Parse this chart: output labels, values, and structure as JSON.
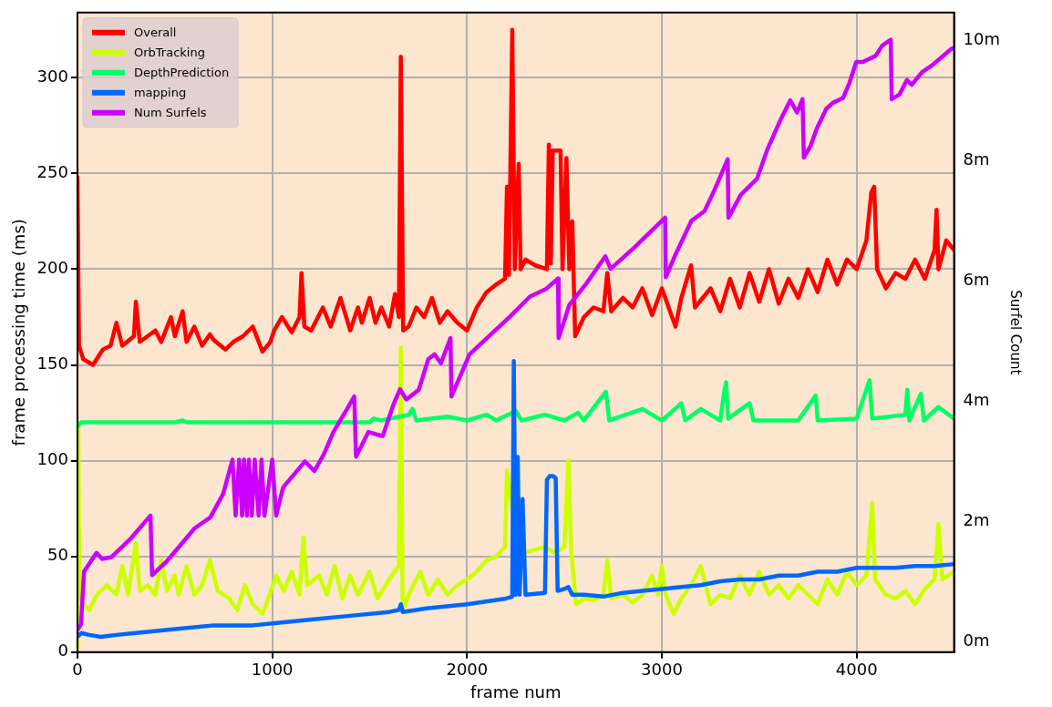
{
  "chart_data": {
    "type": "line",
    "xlabel": "frame num",
    "ylabel": "frame processing time (ms)",
    "y2label": "Surfel Count",
    "xlim": [
      0,
      4500
    ],
    "xticks": [
      0,
      1000,
      2000,
      3000,
      4000
    ],
    "ylim": [
      0,
      334
    ],
    "yticks": [
      0,
      50,
      100,
      150,
      200,
      250,
      300
    ],
    "y2lim": [
      -0.17,
      10.46
    ],
    "y2ticks": [
      {
        "value": 0,
        "label": "0m"
      },
      {
        "value": 2,
        "label": "2m"
      },
      {
        "value": 4,
        "label": "4m"
      },
      {
        "value": 6,
        "label": "6m"
      },
      {
        "value": 8,
        "label": "8m"
      },
      {
        "value": 10,
        "label": "10m"
      }
    ],
    "grid": true,
    "legend": "top left",
    "marker": "none",
    "line_style": "solid",
    "series": [
      {
        "name": "Overall",
        "color": "#ff0000",
        "x": [
          0,
          8,
          30,
          80,
          130,
          170,
          200,
          230,
          290,
          300,
          320,
          400,
          430,
          480,
          500,
          540,
          560,
          600,
          640,
          680,
          700,
          760,
          800,
          850,
          900,
          950,
          990,
          1010,
          1050,
          1100,
          1140,
          1150,
          1165,
          1200,
          1260,
          1300,
          1350,
          1400,
          1440,
          1460,
          1500,
          1530,
          1560,
          1600,
          1630,
          1650,
          1660,
          1672,
          1700,
          1740,
          1780,
          1820,
          1860,
          1900,
          1950,
          2000,
          2050,
          2100,
          2150,
          2195,
          2205,
          2215,
          2232,
          2245,
          2265,
          2275,
          2300,
          2350,
          2410,
          2420,
          2430,
          2440,
          2460,
          2480,
          2490,
          2510,
          2525,
          2540,
          2555,
          2600,
          2650,
          2700,
          2720,
          2740,
          2800,
          2850,
          2900,
          2950,
          3000,
          3070,
          3100,
          3150,
          3170,
          3250,
          3300,
          3350,
          3400,
          3450,
          3500,
          3550,
          3600,
          3650,
          3700,
          3750,
          3800,
          3850,
          3900,
          3950,
          4000,
          4050,
          4075,
          4090,
          4105,
          4150,
          4200,
          4250,
          4300,
          4350,
          4400,
          4410,
          4420,
          4460,
          4500
        ],
        "values": [
          248,
          160,
          153,
          150,
          158,
          160,
          172,
          160,
          165,
          183,
          162,
          168,
          162,
          175,
          165,
          178,
          162,
          170,
          160,
          166,
          163,
          158,
          162,
          165,
          170,
          157,
          162,
          168,
          175,
          167,
          175,
          198,
          170,
          168,
          180,
          170,
          185,
          168,
          180,
          172,
          185,
          172,
          180,
          170,
          187,
          175,
          311,
          168,
          170,
          180,
          175,
          185,
          172,
          178,
          172,
          168,
          180,
          188,
          192,
          195,
          243,
          197,
          325,
          200,
          255,
          200,
          205,
          202,
          200,
          265,
          203,
          262,
          262,
          262,
          200,
          258,
          200,
          225,
          165,
          175,
          180,
          178,
          198,
          178,
          185,
          180,
          190,
          176,
          190,
          170,
          185,
          202,
          180,
          190,
          178,
          195,
          180,
          198,
          183,
          200,
          182,
          195,
          185,
          200,
          188,
          205,
          192,
          205,
          200,
          215,
          240,
          243,
          200,
          190,
          198,
          195,
          205,
          195,
          210,
          231,
          200,
          215,
          210
        ]
      },
      {
        "name": "OrbTracking",
        "color": "#ccff00",
        "x": [
          0,
          4,
          10,
          30,
          60,
          100,
          150,
          200,
          230,
          260,
          300,
          320,
          360,
          400,
          430,
          460,
          500,
          520,
          560,
          600,
          640,
          680,
          720,
          780,
          820,
          860,
          900,
          950,
          980,
          1020,
          1060,
          1100,
          1140,
          1160,
          1180,
          1240,
          1280,
          1320,
          1360,
          1400,
          1440,
          1500,
          1540,
          1600,
          1650,
          1660,
          1670,
          1700,
          1760,
          1800,
          1850,
          1900,
          1950,
          2000,
          2050,
          2100,
          2150,
          2195,
          2205,
          2260,
          2300,
          2400,
          2450,
          2500,
          2520,
          2535,
          2560,
          2600,
          2650,
          2700,
          2720,
          2740,
          2800,
          2850,
          2900,
          2950,
          2980,
          3000,
          3020,
          3060,
          3100,
          3150,
          3200,
          3250,
          3300,
          3350,
          3400,
          3450,
          3500,
          3550,
          3600,
          3650,
          3700,
          3750,
          3800,
          3850,
          3900,
          3950,
          4000,
          4050,
          4080,
          4095,
          4150,
          4200,
          4250,
          4300,
          4350,
          4400,
          4420,
          4440,
          4500
        ],
        "values": [
          0,
          120,
          30,
          25,
          22,
          30,
          35,
          30,
          45,
          30,
          57,
          32,
          35,
          30,
          48,
          32,
          40,
          30,
          45,
          30,
          35,
          48,
          32,
          28,
          22,
          35,
          25,
          20,
          28,
          40,
          32,
          42,
          30,
          60,
          35,
          40,
          30,
          45,
          28,
          40,
          30,
          42,
          28,
          38,
          45,
          159,
          22,
          30,
          42,
          30,
          38,
          30,
          35,
          38,
          42,
          48,
          50,
          55,
          95,
          55,
          52,
          55,
          52,
          55,
          100,
          52,
          25,
          28,
          27,
          30,
          48,
          28,
          30,
          26,
          30,
          40,
          30,
          45,
          30,
          20,
          28,
          35,
          45,
          25,
          30,
          28,
          40,
          30,
          42,
          30,
          35,
          28,
          35,
          30,
          25,
          38,
          30,
          42,
          35,
          40,
          78,
          38,
          30,
          28,
          32,
          25,
          33,
          38,
          67,
          38,
          42
        ]
      },
      {
        "name": "DepthPrediction",
        "color": "#00ff66",
        "x": [
          0,
          20,
          500,
          540,
          560,
          1000,
          1500,
          1520,
          1560,
          1700,
          1720,
          1740,
          1900,
          2000,
          2100,
          2150,
          2250,
          2280,
          2400,
          2500,
          2570,
          2600,
          2713,
          2730,
          2900,
          3000,
          3100,
          3120,
          3200,
          3300,
          3320,
          3330,
          3340,
          3450,
          3470,
          3700,
          3790,
          3800,
          4000,
          4066,
          4080,
          4250,
          4260,
          4270,
          4330,
          4345,
          4420,
          4500
        ],
        "values": [
          118,
          120,
          120,
          121,
          120,
          120,
          120,
          122,
          121,
          124,
          127,
          121,
          123,
          121,
          124,
          121,
          126,
          121,
          124,
          121,
          125,
          121,
          136,
          121,
          127,
          121,
          130,
          121,
          127,
          121,
          136,
          141,
          122,
          130,
          121,
          121,
          134,
          121,
          122,
          142,
          122,
          124,
          137,
          121,
          135,
          121,
          128,
          122
        ]
      },
      {
        "name": "mapping",
        "color": "#0066ff",
        "x": [
          0,
          20,
          60,
          120,
          200,
          300,
          500,
          700,
          900,
          1000,
          1200,
          1400,
          1600,
          1650,
          1660,
          1670,
          1800,
          2000,
          2200,
          2232,
          2240,
          2250,
          2260,
          2270,
          2285,
          2300,
          2400,
          2410,
          2425,
          2440,
          2455,
          2465,
          2500,
          2520,
          2540,
          2600,
          2700,
          2800,
          2900,
          3000,
          3100,
          3200,
          3300,
          3400,
          3500,
          3600,
          3700,
          3800,
          3900,
          4000,
          4100,
          4200,
          4300,
          4400,
          4500
        ],
        "values": [
          8,
          10,
          9,
          8,
          9,
          10,
          12,
          14,
          14,
          15,
          17,
          19,
          21,
          22,
          25,
          21,
          23,
          25,
          28,
          29,
          152,
          30,
          102,
          30,
          80,
          30,
          31,
          90,
          92,
          92,
          91,
          32,
          33,
          34,
          30,
          30,
          29,
          31,
          32,
          33,
          34,
          35,
          37,
          38,
          38,
          40,
          40,
          42,
          42,
          44,
          44,
          44,
          45,
          45,
          46
        ]
      },
      {
        "name": "Num Surfels",
        "color": "#cc00ff",
        "axis": "y2",
        "x": [
          0,
          18,
          34,
          98,
          127,
          175,
          277,
          375,
          383,
          456,
          602,
          682,
          748,
          796,
          812,
          830,
          845,
          855,
          870,
          880,
          895,
          910,
          930,
          945,
          960,
          1000,
          1020,
          1056,
          1168,
          1216,
          1265,
          1314,
          1380,
          1421,
          1430,
          1494,
          1567,
          1624,
          1656,
          1688,
          1752,
          1801,
          1833,
          1866,
          1915,
          1920,
          2013,
          2221,
          2323,
          2407,
          2467,
          2470,
          2525,
          2611,
          2710,
          2737,
          2864,
          2949,
          3017,
          3020,
          3066,
          3152,
          3219,
          3270,
          3338,
          3342,
          3405,
          3489,
          3541,
          3608,
          3659,
          3694,
          3722,
          3729,
          3763,
          3795,
          3844,
          3878,
          3930,
          3963,
          3998,
          4031,
          4097,
          4131,
          4175,
          4180,
          4220,
          4258,
          4283,
          4336,
          4386,
          4487,
          4500
        ],
        "values": [
          0.2,
          0.29,
          1.17,
          1.48,
          1.38,
          1.41,
          1.73,
          2.1,
          1.11,
          1.33,
          1.89,
          2.07,
          2.46,
          3.03,
          2.1,
          3.03,
          2.1,
          3.03,
          2.1,
          3.03,
          2.1,
          3.03,
          2.1,
          3.03,
          2.1,
          3.03,
          2.1,
          2.57,
          3.0,
          2.84,
          3.12,
          3.49,
          3.85,
          4.08,
          3.08,
          3.49,
          3.42,
          3.96,
          4.2,
          4.03,
          4.19,
          4.7,
          4.78,
          4.63,
          5.05,
          4.08,
          4.78,
          5.41,
          5.74,
          5.87,
          6.04,
          5.05,
          5.6,
          5.95,
          6.41,
          6.2,
          6.57,
          6.84,
          7.05,
          6.06,
          6.41,
          7.0,
          7.16,
          7.51,
          8.02,
          7.05,
          7.43,
          7.7,
          8.18,
          8.67,
          9.0,
          8.8,
          9.02,
          8.05,
          8.24,
          8.53,
          8.86,
          8.96,
          9.04,
          9.29,
          9.64,
          9.64,
          9.74,
          9.91,
          10.01,
          9.02,
          9.1,
          9.34,
          9.26,
          9.47,
          9.58,
          9.86,
          9.87
        ]
      }
    ]
  }
}
